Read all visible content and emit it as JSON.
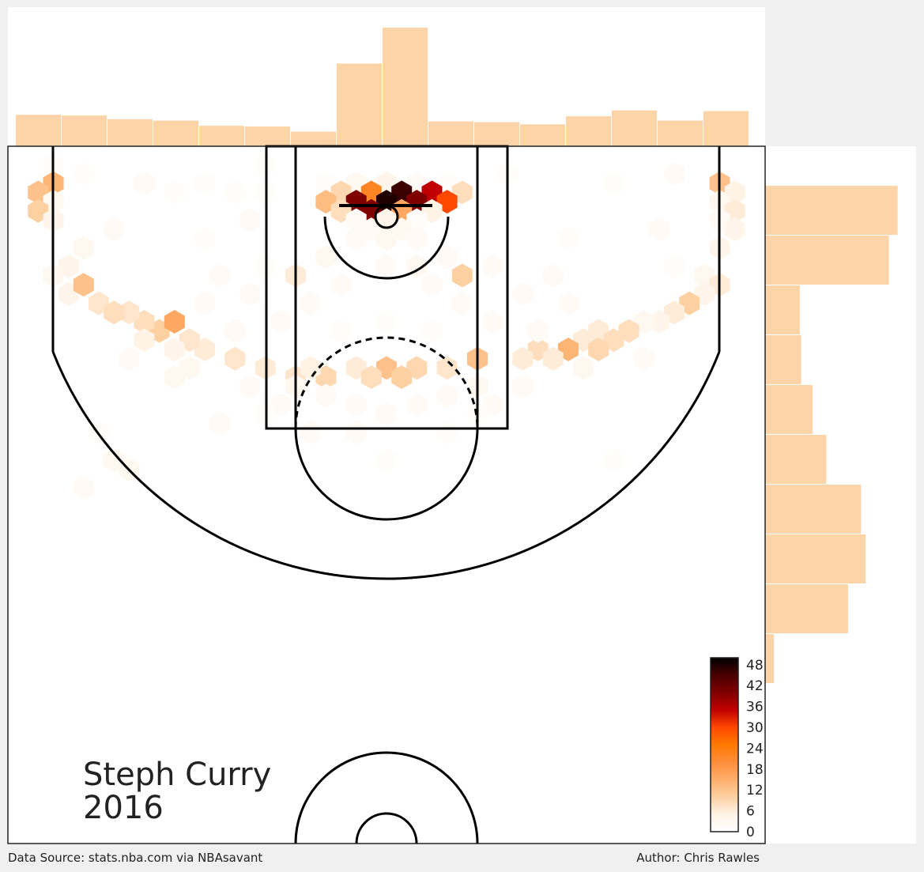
{
  "chart_data": {
    "type": "hexbin",
    "player": "Steph Curry",
    "season": "2016",
    "hex_color_ramp": [
      "#ffffff",
      "#fff3e6",
      "#fdd0a2",
      "#fdae6b",
      "#fd8d3c",
      "#ff7a00",
      "#ff4800",
      "#c00000",
      "#800000",
      "#4a0000",
      "#000000"
    ],
    "colorbar": {
      "ticks": [
        "0",
        "6",
        "12",
        "18",
        "24",
        "30",
        "36",
        "42",
        "48"
      ],
      "max": 50
    },
    "hexbin_counts": [
      {
        "x": -22,
        "y": 26,
        "count": 1
      },
      {
        "x": -20,
        "y": 25,
        "count": 1
      },
      {
        "x": -22,
        "y": 24,
        "count": 14
      },
      {
        "x": -23,
        "y": 23,
        "count": 12
      },
      {
        "x": -22,
        "y": 22,
        "count": 3
      },
      {
        "x": -23,
        "y": 21,
        "count": 10
      },
      {
        "x": -22,
        "y": 20,
        "count": 4
      },
      {
        "x": -16,
        "y": 24,
        "count": 2
      },
      {
        "x": -14,
        "y": 23,
        "count": 1
      },
      {
        "x": -12,
        "y": 24,
        "count": 1
      },
      {
        "x": -10,
        "y": 23,
        "count": 1
      },
      {
        "x": -8,
        "y": 23,
        "count": 1
      },
      {
        "x": -9,
        "y": 20,
        "count": 2
      },
      {
        "x": -4,
        "y": 24,
        "count": 1
      },
      {
        "x": -2,
        "y": 24,
        "count": 3
      },
      {
        "x": 0,
        "y": 24,
        "count": 4
      },
      {
        "x": 2,
        "y": 24,
        "count": 2
      },
      {
        "x": 4,
        "y": 24,
        "count": 1
      },
      {
        "x": -3,
        "y": 23,
        "count": 9
      },
      {
        "x": -1,
        "y": 23,
        "count": 22
      },
      {
        "x": 1,
        "y": 23,
        "count": 46
      },
      {
        "x": 3,
        "y": 23,
        "count": 35
      },
      {
        "x": 5,
        "y": 23,
        "count": 8
      },
      {
        "x": -4,
        "y": 22,
        "count": 13
      },
      {
        "x": -2,
        "y": 22,
        "count": 40
      },
      {
        "x": 0,
        "y": 22,
        "count": 48
      },
      {
        "x": 2,
        "y": 22,
        "count": 40
      },
      {
        "x": 4,
        "y": 22,
        "count": 30
      },
      {
        "x": -3,
        "y": 21,
        "count": 8
      },
      {
        "x": -1,
        "y": 21,
        "count": 40
      },
      {
        "x": 1,
        "y": 21,
        "count": 16
      },
      {
        "x": 3,
        "y": 21,
        "count": 5
      },
      {
        "x": -2,
        "y": 20,
        "count": 2
      },
      {
        "x": 0,
        "y": 20,
        "count": 4
      },
      {
        "x": 2,
        "y": 20,
        "count": 1
      },
      {
        "x": -1,
        "y": 19,
        "count": 2
      },
      {
        "x": 1,
        "y": 19,
        "count": 3
      },
      {
        "x": 0,
        "y": 18,
        "count": 3
      },
      {
        "x": -2,
        "y": 18,
        "count": 2
      },
      {
        "x": 2,
        "y": 18,
        "count": 2
      },
      {
        "x": 22,
        "y": 24,
        "count": 12
      },
      {
        "x": 23,
        "y": 23,
        "count": 5
      },
      {
        "x": 22,
        "y": 22,
        "count": 3
      },
      {
        "x": 23,
        "y": 21,
        "count": 6
      },
      {
        "x": 22,
        "y": 20,
        "count": 2
      },
      {
        "x": 23,
        "y": 19,
        "count": 4
      },
      {
        "x": 22,
        "y": 17,
        "count": 4
      },
      {
        "x": 19,
        "y": 15,
        "count": 1
      },
      {
        "x": 21,
        "y": 14,
        "count": 3
      },
      {
        "x": 22,
        "y": 13,
        "count": 6
      },
      {
        "x": 21,
        "y": 12,
        "count": 4
      },
      {
        "x": 20,
        "y": 11,
        "count": 10
      },
      {
        "x": 19,
        "y": 10,
        "count": 6
      },
      {
        "x": 18,
        "y": 9,
        "count": 4
      },
      {
        "x": 17,
        "y": 9,
        "count": 3
      },
      {
        "x": 16,
        "y": 8,
        "count": 8
      },
      {
        "x": 14,
        "y": 8,
        "count": 6
      },
      {
        "x": 15,
        "y": 7,
        "count": 8
      },
      {
        "x": 13,
        "y": 7,
        "count": 6
      },
      {
        "x": 12,
        "y": 6,
        "count": 14
      },
      {
        "x": 14,
        "y": 6,
        "count": 9
      },
      {
        "x": 10,
        "y": 6,
        "count": 8
      },
      {
        "x": 11,
        "y": 5,
        "count": 6
      },
      {
        "x": 9,
        "y": 5,
        "count": 6
      },
      {
        "x": 6,
        "y": 5,
        "count": 12
      },
      {
        "x": 4,
        "y": 4,
        "count": 7
      },
      {
        "x": 2,
        "y": 4,
        "count": 9
      },
      {
        "x": 0,
        "y": 4,
        "count": 12
      },
      {
        "x": -2,
        "y": 4,
        "count": 6
      },
      {
        "x": -1,
        "y": 3,
        "count": 8
      },
      {
        "x": 1,
        "y": 3,
        "count": 10
      },
      {
        "x": -4,
        "y": 3,
        "count": 9
      },
      {
        "x": -6,
        "y": 3,
        "count": 7
      },
      {
        "x": -5,
        "y": 4,
        "count": 5
      },
      {
        "x": -8,
        "y": 4,
        "count": 6
      },
      {
        "x": -10,
        "y": 5,
        "count": 7
      },
      {
        "x": -12,
        "y": 6,
        "count": 6
      },
      {
        "x": -13,
        "y": 7,
        "count": 7
      },
      {
        "x": -15,
        "y": 8,
        "count": 10
      },
      {
        "x": -16,
        "y": 9,
        "count": 8
      },
      {
        "x": -14,
        "y": 9,
        "count": 16
      },
      {
        "x": -17,
        "y": 10,
        "count": 7
      },
      {
        "x": -19,
        "y": 11,
        "count": 7
      },
      {
        "x": -21,
        "y": 12,
        "count": 4
      },
      {
        "x": -20,
        "y": 13,
        "count": 12
      },
      {
        "x": -22,
        "y": 14,
        "count": 3
      },
      {
        "x": -21,
        "y": 15,
        "count": 4
      },
      {
        "x": -18,
        "y": 10,
        "count": 8
      },
      {
        "x": -16,
        "y": 7,
        "count": 5
      },
      {
        "x": -14,
        "y": 6,
        "count": 4
      },
      {
        "x": 5,
        "y": 14,
        "count": 10
      },
      {
        "x": -4,
        "y": 16,
        "count": 3
      },
      {
        "x": 4,
        "y": 16,
        "count": 2
      },
      {
        "x": 0,
        "y": 15,
        "count": 2
      },
      {
        "x": -6,
        "y": 14,
        "count": 6
      },
      {
        "x": 2,
        "y": 15,
        "count": 3
      },
      {
        "x": 7,
        "y": 15,
        "count": 2
      },
      {
        "x": -8,
        "y": 15,
        "count": 1
      },
      {
        "x": -11,
        "y": 14,
        "count": 2
      },
      {
        "x": 11,
        "y": 14,
        "count": 2
      },
      {
        "x": -3,
        "y": 13,
        "count": 2
      },
      {
        "x": 3,
        "y": 13,
        "count": 2
      },
      {
        "x": -9,
        "y": 12,
        "count": 2
      },
      {
        "x": 9,
        "y": 12,
        "count": 2
      },
      {
        "x": -5,
        "y": 11,
        "count": 2
      },
      {
        "x": 5,
        "y": 11,
        "count": 2
      },
      {
        "x": -12,
        "y": 11,
        "count": 2
      },
      {
        "x": 12,
        "y": 11,
        "count": 2
      },
      {
        "x": -7,
        "y": 9,
        "count": 2
      },
      {
        "x": 7,
        "y": 9,
        "count": 2
      },
      {
        "x": 0,
        "y": 9,
        "count": 1
      },
      {
        "x": -10,
        "y": 8,
        "count": 2
      },
      {
        "x": 10,
        "y": 8,
        "count": 2
      },
      {
        "x": -3,
        "y": 8,
        "count": 1
      },
      {
        "x": 3,
        "y": 8,
        "count": 1
      },
      {
        "x": -6,
        "y": 2,
        "count": 3
      },
      {
        "x": 6,
        "y": 2,
        "count": 3
      },
      {
        "x": -4,
        "y": 1,
        "count": 2
      },
      {
        "x": 4,
        "y": 1,
        "count": 2
      },
      {
        "x": -9,
        "y": 2,
        "count": 2
      },
      {
        "x": 9,
        "y": 2,
        "count": 2
      },
      {
        "x": -13,
        "y": 4,
        "count": 3
      },
      {
        "x": 13,
        "y": 4,
        "count": 3
      },
      {
        "x": 17,
        "y": 5,
        "count": 2
      },
      {
        "x": -17,
        "y": 5,
        "count": 2
      },
      {
        "x": -2,
        "y": 0,
        "count": 2
      },
      {
        "x": 2,
        "y": 0,
        "count": 2
      },
      {
        "x": -7,
        "y": 0,
        "count": 2
      },
      {
        "x": 7,
        "y": 0,
        "count": 2
      },
      {
        "x": -14,
        "y": 3,
        "count": 3
      },
      {
        "x": -20,
        "y": 17,
        "count": 3
      },
      {
        "x": -18,
        "y": 19,
        "count": 2
      },
      {
        "x": 18,
        "y": 19,
        "count": 2
      },
      {
        "x": -12,
        "y": 18,
        "count": 1
      },
      {
        "x": 12,
        "y": 18,
        "count": 1
      },
      {
        "x": 19,
        "y": 25,
        "count": 2
      },
      {
        "x": 15,
        "y": 24,
        "count": 1
      },
      {
        "x": 8,
        "y": 25,
        "count": 1
      },
      {
        "x": -8,
        "y": 26,
        "count": 1
      },
      {
        "x": -17,
        "y": -7,
        "count": 3
      },
      {
        "x": -18,
        "y": -6,
        "count": 3
      },
      {
        "x": -19,
        "y": -3,
        "count": 1
      },
      {
        "x": 15,
        "y": -6,
        "count": 1
      },
      {
        "x": 0,
        "y": -6,
        "count": 1
      },
      {
        "x": -5,
        "y": -3,
        "count": 2
      },
      {
        "x": -2,
        "y": -3,
        "count": 2
      },
      {
        "x": 4,
        "y": -3,
        "count": 1
      },
      {
        "x": -8,
        "y": -1,
        "count": 1
      },
      {
        "x": 6,
        "y": -1,
        "count": 1
      },
      {
        "x": -11,
        "y": -2,
        "count": 2
      },
      {
        "x": 0,
        "y": -1,
        "count": 2
      },
      {
        "x": -20,
        "y": -9,
        "count": 2
      }
    ],
    "top_marginal_hist": {
      "counts": [
        43,
        42,
        37,
        35,
        28,
        27,
        20,
        113,
        162,
        34,
        33,
        30,
        41,
        49,
        35,
        48
      ]
    },
    "right_marginal_hist": {
      "counts": [
        195,
        182,
        51,
        53,
        70,
        90,
        141,
        148,
        122,
        13,
        0,
        0,
        0
      ]
    },
    "x_range": [
      -25,
      25
    ],
    "y_range": [
      -47.5,
      28
    ]
  },
  "footer": {
    "source": "Data Source: stats.nba.com via NBAsavant",
    "author": "Author: Chris Rawles"
  }
}
